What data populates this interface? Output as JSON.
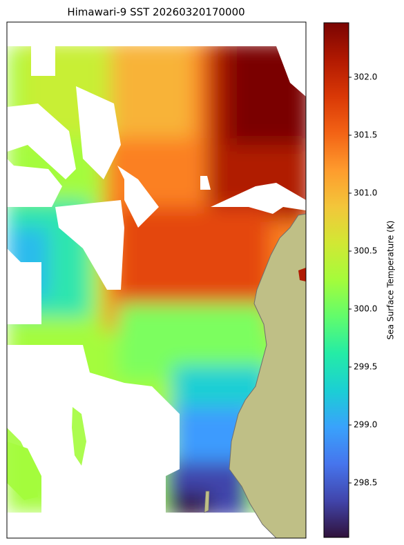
{
  "chart_data": {
    "type": "heatmap",
    "title": "Himawari-9 SST 20260320170000",
    "colorbar_label": "Sea Surface Temperature (K)",
    "colormap": "turbo",
    "clim": [
      298.03,
      302.47
    ],
    "cticks": [
      298.5,
      {
        "value": 299,
        "label": "299.0"
      },
      299.5,
      {
        "value": 300,
        "label": "300.0"
      },
      300.5,
      {
        "value": 301,
        "label": "301.0"
      },
      301.5,
      {
        "value": 302,
        "label": "302.0"
      }
    ]
  }
}
